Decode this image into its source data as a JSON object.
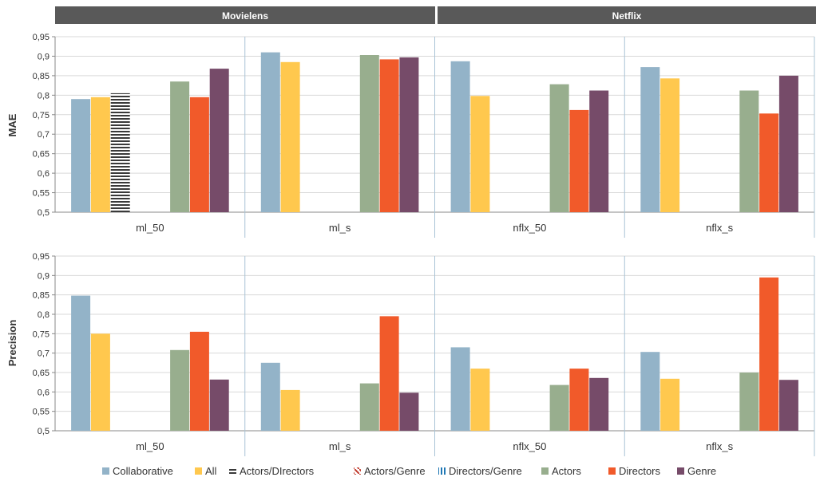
{
  "groups": [
    "Movielens",
    "Netflix"
  ],
  "legend": [
    {
      "name": "Collaborative",
      "pattern": "solid"
    },
    {
      "name": "All",
      "pattern": "solid"
    },
    {
      "name": "Actors/DIrectors",
      "pattern": "hstripes"
    },
    {
      "name": "Actors/Genre",
      "pattern": "diag"
    },
    {
      "name": "Directors/Genre",
      "pattern": "vstripes"
    },
    {
      "name": "Actors",
      "pattern": "solid"
    },
    {
      "name": "Directors",
      "pattern": "solid"
    },
    {
      "name": "Genre",
      "pattern": "solid"
    }
  ],
  "colors": {
    "Collaborative": "#93B3C8",
    "All": "#FFC84E",
    "Actors/DIrectors": "#3A3A3A",
    "Actors/Genre": "#C0392B",
    "Directors/Genre": "#1F77B4",
    "Actors": "#98AE8E",
    "Directors": "#F15A2A",
    "Genre": "#764B69",
    "header_bg": "#595959",
    "grid": "#D9D9D9",
    "separator": "#A9C4D6"
  },
  "chart_data": [
    {
      "type": "bar",
      "ylabel": "MAE",
      "ylim": [
        0.5,
        0.95
      ],
      "yticks": [
        "0,5",
        "0,55",
        "0,6",
        "0,65",
        "0,7",
        "0,75",
        "0,8",
        "0,85",
        "0,9",
        "0,95"
      ],
      "categories": [
        "ml_50",
        "ml_s",
        "nflx_50",
        "nflx_s"
      ],
      "series": [
        {
          "name": "Collaborative",
          "values": [
            0.79,
            0.91,
            0.887,
            0.872
          ]
        },
        {
          "name": "All",
          "values": [
            0.795,
            0.885,
            0.798,
            0.843
          ]
        },
        {
          "name": "Actors/DIrectors",
          "values": [
            0.805,
            null,
            null,
            null
          ]
        },
        {
          "name": "Actors/Genre",
          "values": [
            null,
            null,
            null,
            null
          ]
        },
        {
          "name": "Directors/Genre",
          "values": [
            null,
            null,
            null,
            null
          ]
        },
        {
          "name": "Actors",
          "values": [
            0.835,
            0.903,
            0.828,
            0.812
          ]
        },
        {
          "name": "Directors",
          "values": [
            0.795,
            0.892,
            0.762,
            0.753
          ]
        },
        {
          "name": "Genre",
          "values": [
            0.868,
            0.897,
            0.812,
            0.85
          ]
        }
      ]
    },
    {
      "type": "bar",
      "ylabel": "Precision",
      "ylim": [
        0.5,
        0.95
      ],
      "yticks": [
        "0,5",
        "0,55",
        "0,6",
        "0,65",
        "0,7",
        "0,75",
        "0,8",
        "0,85",
        "0,9",
        "0,95"
      ],
      "categories": [
        "ml_50",
        "ml_s",
        "nflx_50",
        "nflx_s"
      ],
      "series": [
        {
          "name": "Collaborative",
          "values": [
            0.848,
            0.675,
            0.715,
            0.703
          ]
        },
        {
          "name": "All",
          "values": [
            0.75,
            0.605,
            0.66,
            0.634
          ]
        },
        {
          "name": "Actors/DIrectors",
          "values": [
            null,
            null,
            null,
            null
          ]
        },
        {
          "name": "Actors/Genre",
          "values": [
            null,
            null,
            null,
            null
          ]
        },
        {
          "name": "Directors/Genre",
          "values": [
            null,
            null,
            null,
            null
          ]
        },
        {
          "name": "Actors",
          "values": [
            0.708,
            0.622,
            0.618,
            0.65
          ]
        },
        {
          "name": "Directors",
          "values": [
            0.755,
            0.795,
            0.66,
            0.895
          ]
        },
        {
          "name": "Genre",
          "values": [
            0.632,
            0.598,
            0.636,
            0.631
          ]
        }
      ]
    }
  ]
}
